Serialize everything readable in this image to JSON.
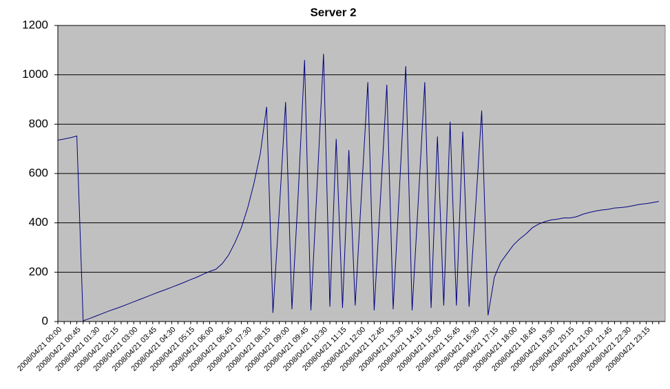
{
  "chart_data": {
    "type": "line",
    "title": "Server 2",
    "categories": [
      "2008/04/21 00:00",
      null,
      null,
      "2008/04/21 00:45",
      null,
      null,
      "2008/04/21 01:30",
      null,
      null,
      "2008/04/21 02:15",
      null,
      null,
      "2008/04/21 03:00",
      null,
      null,
      "2008/04/21 03:45",
      null,
      null,
      "2008/04/21 04:30",
      null,
      null,
      "2008/04/21 05:15",
      null,
      null,
      "2008/04/21 06:00",
      null,
      null,
      "2008/04/21 06:45",
      null,
      null,
      "2008/04/21 07:30",
      null,
      null,
      "2008/04/21 08:15",
      null,
      null,
      "2008/04/21 09:00",
      null,
      null,
      "2008/04/21 09:45",
      null,
      null,
      "2008/04/21 10:30",
      null,
      null,
      "2008/04/21 11:15",
      null,
      null,
      "2008/04/21 12:00",
      null,
      null,
      "2008/04/21 12:45",
      null,
      null,
      "2008/04/21 13:30",
      null,
      null,
      "2008/04/21 14:15",
      null,
      null,
      "2008/04/21 15:00",
      null,
      null,
      "2008/04/21 15:45",
      null,
      null,
      "2008/04/21 16:30",
      null,
      null,
      "2008/04/21 17:15",
      null,
      null,
      "2008/04/21 18:00",
      null,
      null,
      "2008/04/21 18:45",
      null,
      null,
      "2008/04/21 19:30",
      null,
      null,
      "2008/04/21 20:15",
      null,
      null,
      "2008/04/21 21:00",
      null,
      null,
      "2008/04/21 21:45",
      null,
      null,
      "2008/04/21 22:30",
      null,
      null,
      "2008/04/21 23:15",
      null,
      null
    ],
    "values": [
      735,
      740,
      745,
      752,
      3,
      12,
      22,
      32,
      42,
      51,
      60,
      70,
      80,
      90,
      100,
      110,
      120,
      129,
      139,
      149,
      159,
      170,
      180,
      192,
      203,
      212,
      235,
      270,
      320,
      380,
      460,
      560,
      680,
      870,
      35,
      450,
      890,
      50,
      520,
      1060,
      45,
      560,
      1085,
      60,
      740,
      55,
      695,
      65,
      520,
      970,
      45,
      500,
      960,
      50,
      540,
      1035,
      45,
      500,
      970,
      55,
      750,
      65,
      810,
      65,
      770,
      60,
      450,
      855,
      25,
      180,
      240,
      275,
      310,
      335,
      355,
      380,
      395,
      405,
      412,
      415,
      420,
      420,
      425,
      435,
      442,
      448,
      452,
      455,
      460,
      462,
      465,
      470,
      475,
      478,
      482,
      487
    ],
    "color": "#000080",
    "background": "#c0c0c0",
    "ylim": [
      0,
      1200
    ],
    "yticks": [
      0,
      200,
      400,
      600,
      800,
      1000,
      1200
    ],
    "grid": true
  }
}
